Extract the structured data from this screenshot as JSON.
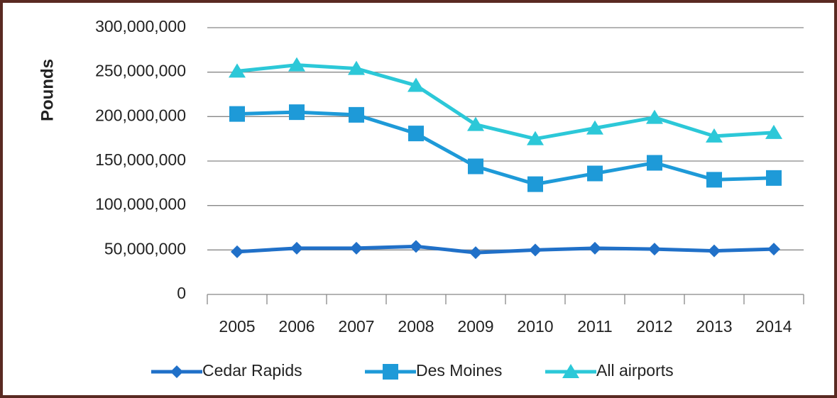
{
  "chart_data": {
    "type": "line",
    "y_label": "Pounds",
    "categories": [
      "2005",
      "2006",
      "2007",
      "2008",
      "2009",
      "2010",
      "2011",
      "2012",
      "2013",
      "2014"
    ],
    "series": [
      {
        "name": "Cedar Rapids",
        "color": "#2070c8",
        "marker": "diamond",
        "values": [
          48000000,
          52000000,
          52000000,
          54000000,
          47000000,
          50000000,
          52000000,
          51000000,
          49000000,
          51000000
        ]
      },
      {
        "name": "Des Moines",
        "color": "#1e9ad8",
        "marker": "square",
        "values": [
          203000000,
          205000000,
          202000000,
          181000000,
          144000000,
          124000000,
          136000000,
          148000000,
          129000000,
          131000000
        ]
      },
      {
        "name": "All airports",
        "color": "#2cc8d8",
        "marker": "triangle",
        "values": [
          251000000,
          258000000,
          254000000,
          235000000,
          191000000,
          175000000,
          187000000,
          199000000,
          178000000,
          182000000
        ]
      }
    ],
    "ylim": [
      0,
      300000000
    ],
    "yticks": [
      0,
      {
        "value": 50000000,
        "label": "50,000,000"
      },
      {
        "value": 100000000,
        "label": "100,000,000"
      },
      {
        "value": 150000000,
        "label": "150,000,000"
      },
      {
        "value": 200000000,
        "label": "200,000,000"
      },
      {
        "value": 250000000,
        "label": "250,000,000"
      },
      {
        "value": 300000000,
        "label": "300,000,000"
      }
    ],
    "grid": true,
    "legend": "bottom"
  }
}
